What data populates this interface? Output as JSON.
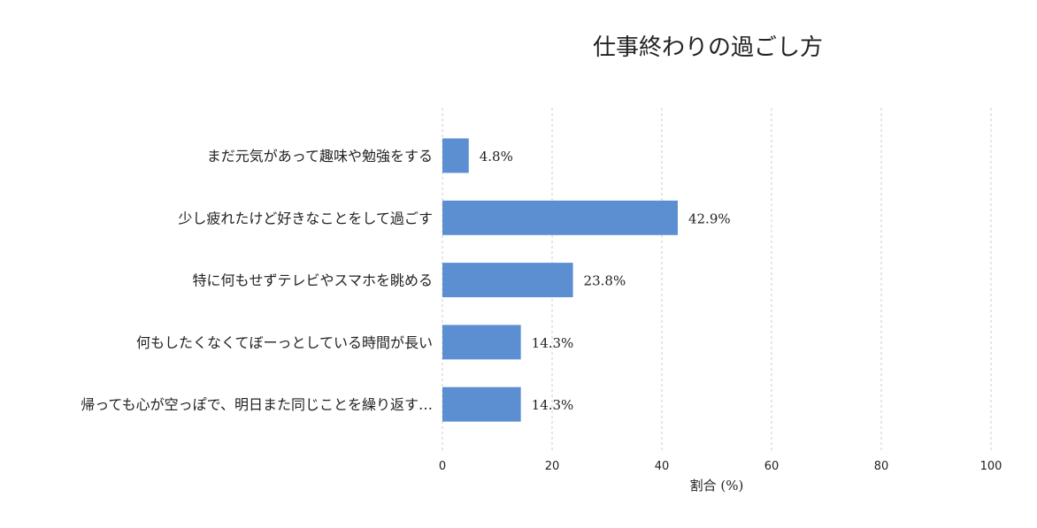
{
  "chart_data": {
    "type": "bar",
    "orientation": "horizontal",
    "title": "仕事終わりの過ごし方",
    "xlabel": "割合 (%)",
    "ylabel": "",
    "xlim": [
      0,
      100
    ],
    "xticks": [
      "0",
      "20",
      "40",
      "60",
      "80",
      "100"
    ],
    "grid": "vertical dashed",
    "categories": [
      "まだ元気があって趣味や勉強をする",
      "少し疲れたけど好きなことをして過ごす",
      "特に何もせずテレビやスマホを眺める",
      "何もしたくなくてぼーっとしている時間が長い",
      "帰っても心が空っぽで、明日また同じことを繰り返す…"
    ],
    "values": [
      4.8,
      42.9,
      23.8,
      14.3,
      14.3
    ],
    "value_labels": [
      "4.8%",
      "42.9%",
      "23.8%",
      "14.3%",
      "14.3%"
    ],
    "bar_color": "#5b8fd1"
  }
}
